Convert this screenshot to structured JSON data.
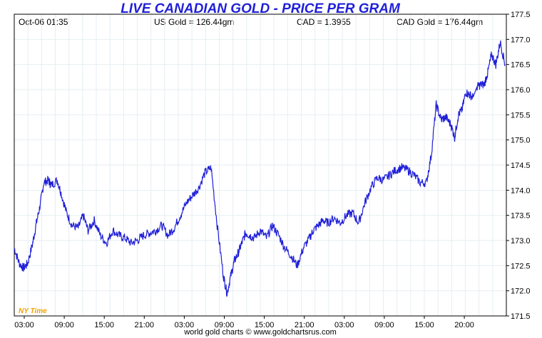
{
  "header": {
    "title": "LIVE CANADIAN GOLD - PRICE PER GRAM",
    "timestamp": "Oct-06  01:35",
    "us_gold": "US Gold = 126.44gm",
    "cad_rate": "CAD = 1.3955",
    "cad_gold": "CAD Gold = 176.44gm"
  },
  "footer": {
    "credit": "world gold charts © www.goldchartsrus.com"
  },
  "timezone_label": "NY Time",
  "colors": {
    "line": "#1f1fd8",
    "title": "#1f1fd8",
    "grid": "#e6eef2",
    "timezone": "#f0a000"
  },
  "chart_data": {
    "type": "line",
    "title": "LIVE CANADIAN GOLD - PRICE PER GRAM",
    "xlabel": "",
    "ylabel": "",
    "grid": true,
    "x_tick_labels": [
      "03:00",
      "09:00",
      "15:00",
      "21:00",
      "03:00",
      "09:00",
      "15:00",
      "21:00",
      "03:00",
      "09:00",
      "15:00",
      "20:00"
    ],
    "ylim": [
      171.5,
      177.5
    ],
    "y_ticks": [
      171.5,
      172.0,
      172.5,
      173.0,
      173.5,
      174.0,
      174.5,
      175.0,
      175.5,
      176.0,
      176.5,
      177.0,
      177.5
    ],
    "y_tick_labels": [
      "171.5",
      "172.0",
      "172.5",
      "173.0",
      "173.5",
      "174.0",
      "174.5",
      "175.0",
      "175.5",
      "176.0",
      "176.5",
      "177.0",
      "177.5"
    ],
    "series": [
      {
        "x": [
          0,
          0.8,
          1.5,
          2.2,
          3.0,
          3.6,
          4.2,
          4.8,
          5.5,
          6.0,
          7.0,
          7.6,
          8.5,
          9.4,
          10.4,
          11.2,
          12.0,
          13.0,
          14.0,
          15.0,
          16.0,
          17.0,
          18.0,
          19.0,
          20.0,
          21.0,
          22.0,
          23.0,
          24.0,
          25.0,
          26.0,
          27.0,
          28.0,
          29.0,
          30.0,
          31.0,
          32.0,
          33.0,
          34.0,
          34.6,
          35.2,
          35.8,
          36.4,
          37.0,
          37.6,
          38.3,
          39.0,
          40.0,
          41.0,
          42.0,
          43.0,
          44.0,
          45.0,
          46.0,
          47.0,
          48.0,
          48.6,
          49.4,
          50.2,
          51.0,
          52.0,
          53.0,
          54.0,
          55.0,
          56.0,
          57.0,
          58.0,
          59.0,
          60.0,
          61.0,
          62.0,
          63.0,
          64.0,
          65.0,
          66.0,
          67.0,
          67.8,
          68.6,
          69.4,
          70.2,
          71.0,
          71.6,
          72.2,
          72.8,
          73.4,
          74.0,
          74.6,
          75.2,
          75.8,
          76.4,
          77.0,
          77.6,
          78.3,
          79.0,
          79.8
        ],
        "values": [
          172.85,
          172.55,
          172.45,
          172.55,
          172.95,
          173.35,
          173.7,
          174.15,
          174.2,
          174.1,
          174.2,
          173.95,
          173.55,
          173.3,
          173.25,
          173.5,
          173.2,
          173.4,
          173.1,
          172.95,
          173.2,
          173.1,
          173.05,
          172.95,
          173.0,
          173.1,
          173.15,
          173.2,
          173.3,
          173.1,
          173.25,
          173.5,
          173.75,
          173.9,
          174.05,
          174.35,
          174.45,
          173.3,
          172.3,
          171.95,
          172.3,
          172.6,
          172.75,
          172.95,
          173.15,
          173.1,
          173.05,
          173.2,
          173.05,
          173.3,
          173.1,
          172.85,
          172.7,
          172.5,
          172.85,
          173.05,
          173.2,
          173.3,
          173.4,
          173.35,
          173.45,
          173.35,
          173.5,
          173.55,
          173.35,
          173.75,
          174.05,
          174.25,
          174.2,
          174.3,
          174.4,
          174.45,
          174.4,
          174.3,
          174.15,
          174.15,
          174.7,
          175.7,
          175.4,
          175.45,
          175.3,
          175.05,
          175.5,
          175.6,
          175.95,
          175.9,
          175.85,
          176.05,
          176.1,
          176.1,
          176.35,
          176.7,
          176.5,
          176.95,
          176.5
        ]
      }
    ]
  }
}
